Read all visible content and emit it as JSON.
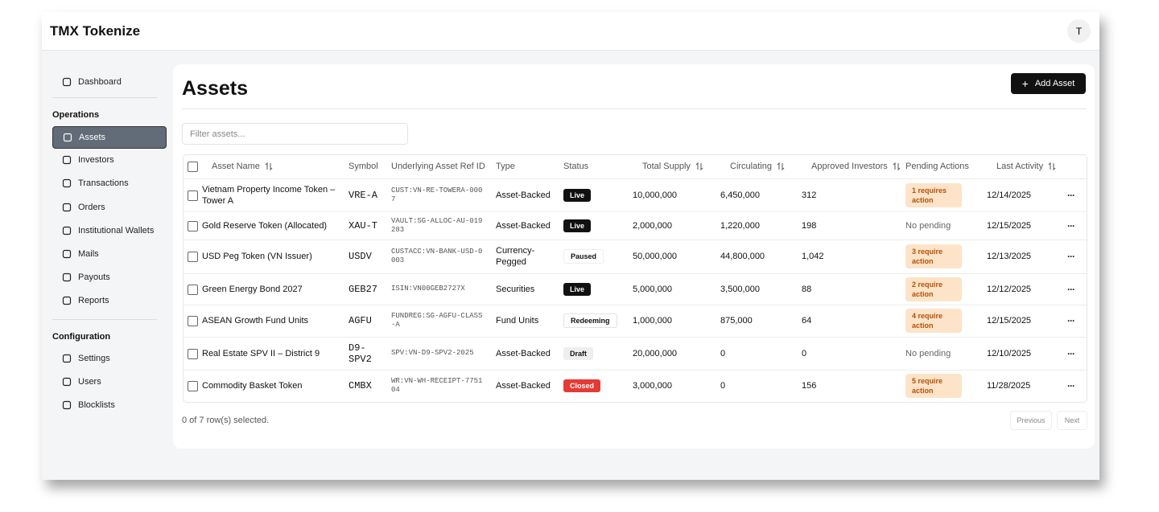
{
  "header": {
    "title": "TMX Tokenize",
    "avatar": "T"
  },
  "sidebar": {
    "top": [
      "Dashboard"
    ],
    "sections": [
      {
        "title": "Operations",
        "items": [
          "Assets",
          "Investors",
          "Transactions",
          "Orders",
          "Institutional Wallets",
          "Mails",
          "Payouts",
          "Reports"
        ]
      },
      {
        "title": "Configuration",
        "items": [
          "Settings",
          "Users",
          "Blocklists"
        ]
      }
    ]
  },
  "main": {
    "title": "Assets",
    "add_button": "Add Asset",
    "filter_placeholder": "Filter assets...",
    "table": {
      "columns": [
        "Asset Name",
        "Symbol",
        "Underlying Asset Ref ID",
        "Type",
        "Status",
        "Total Supply",
        "Circulating",
        "Approved Investors",
        "Pending Actions",
        "Last Activity"
      ],
      "rows": [
        [
          "Vietnam Property Income Token – Tower A",
          "VRE-A",
          "CUST:VN-RE-TOWERA-0007",
          "Asset-Backed",
          "Live",
          "10,000,000",
          "6,450,000",
          "312",
          "1 requires action",
          "12/14/2025"
        ],
        [
          "Gold Reserve Token (Allocated)",
          "XAU-T",
          "VAULT:SG-ALLOC-AU-019283",
          "Asset-Backed",
          "Live",
          "2,000,000",
          "1,220,000",
          "198",
          "No pending",
          "12/15/2025"
        ],
        [
          "USD Peg Token (VN Issuer)",
          "USDV",
          "CUSTACC:VN-BANK-USD-0003",
          "Currency-Pegged",
          "Paused",
          "50,000,000",
          "44,800,000",
          "1,042",
          "3 require action",
          "12/13/2025"
        ],
        [
          "Green Energy Bond 2027",
          "GEB27",
          "ISIN:VN00GEB2727X",
          "Securities",
          "Live",
          "5,000,000",
          "3,500,000",
          "88",
          "2 require action",
          "12/12/2025"
        ],
        [
          "ASEAN Growth Fund Units",
          "AGFU",
          "FUNDREG:SG-AGFU-CLASS-A",
          "Fund Units",
          "Redeeming",
          "1,000,000",
          "875,000",
          "64",
          "4 require action",
          "12/15/2025"
        ],
        [
          "Real Estate SPV II – District 9",
          "D9-SPV2",
          "SPV:VN-D9-SPV2-2025",
          "Asset-Backed",
          "Draft",
          "20,000,000",
          "0",
          "0",
          "No pending",
          "12/10/2025"
        ],
        [
          "Commodity Basket Token",
          "CMBX",
          "WR:VN-WH-RECEIPT-775104",
          "Asset-Backed",
          "Closed",
          "3,000,000",
          "0",
          "156",
          "5 require action",
          "11/28/2025"
        ]
      ]
    },
    "selection": "0 of 7 row(s) selected.",
    "previous": "Previous",
    "next": "Next"
  }
}
